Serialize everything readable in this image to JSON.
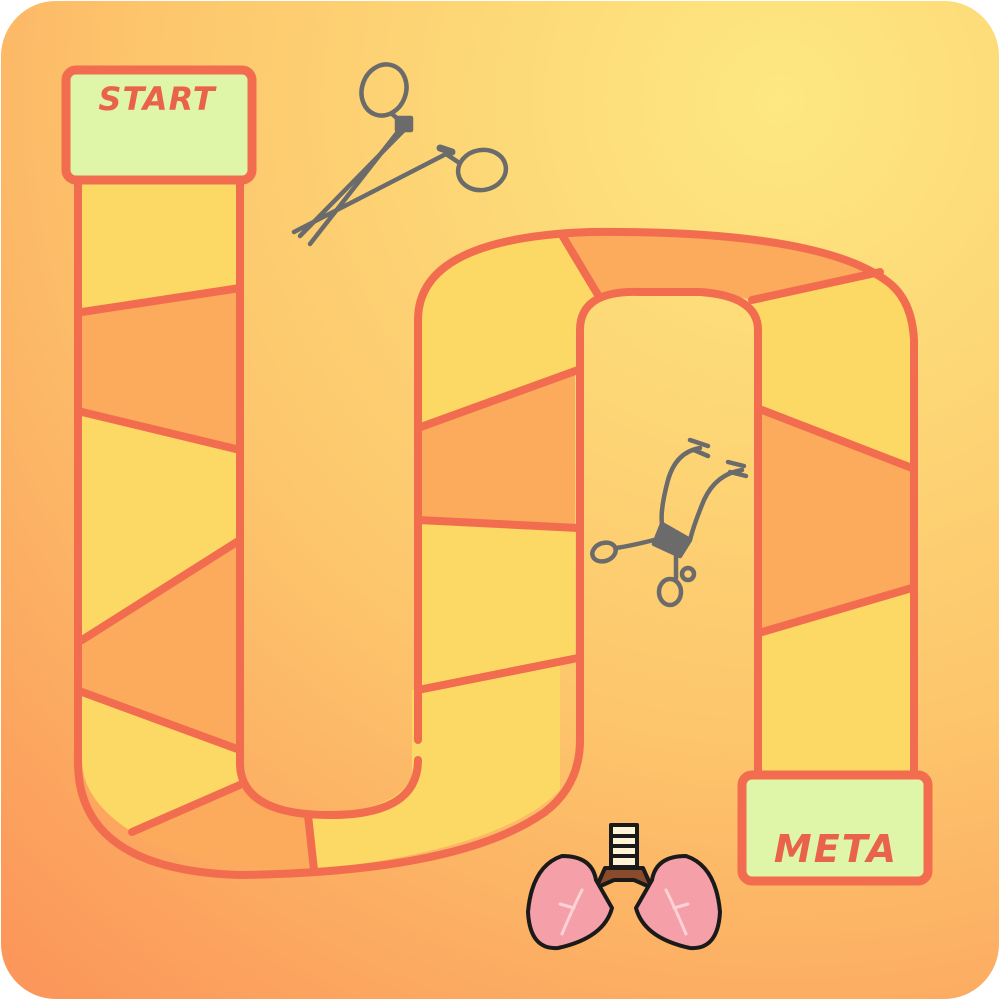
{
  "game": {
    "start_label": "START",
    "finish_label": "META"
  },
  "colors": {
    "background_light": "#fde57c",
    "background_dark": "#fb9a5a",
    "path_outline": "#f26d4f",
    "space_yellow": "#fcd964",
    "space_orange": "#fcaa5c",
    "end_box_fill": "#dff5a8",
    "label_text": "#e8624c",
    "tool_gray": "#6b6b6b",
    "lung_pink": "#f5a0a8",
    "trachea_brown": "#8a4a2c"
  },
  "icons": {
    "tool_1": "surgical-scissors-icon",
    "tool_2": "surgical-retractor-icon",
    "goal": "lungs-icon"
  }
}
